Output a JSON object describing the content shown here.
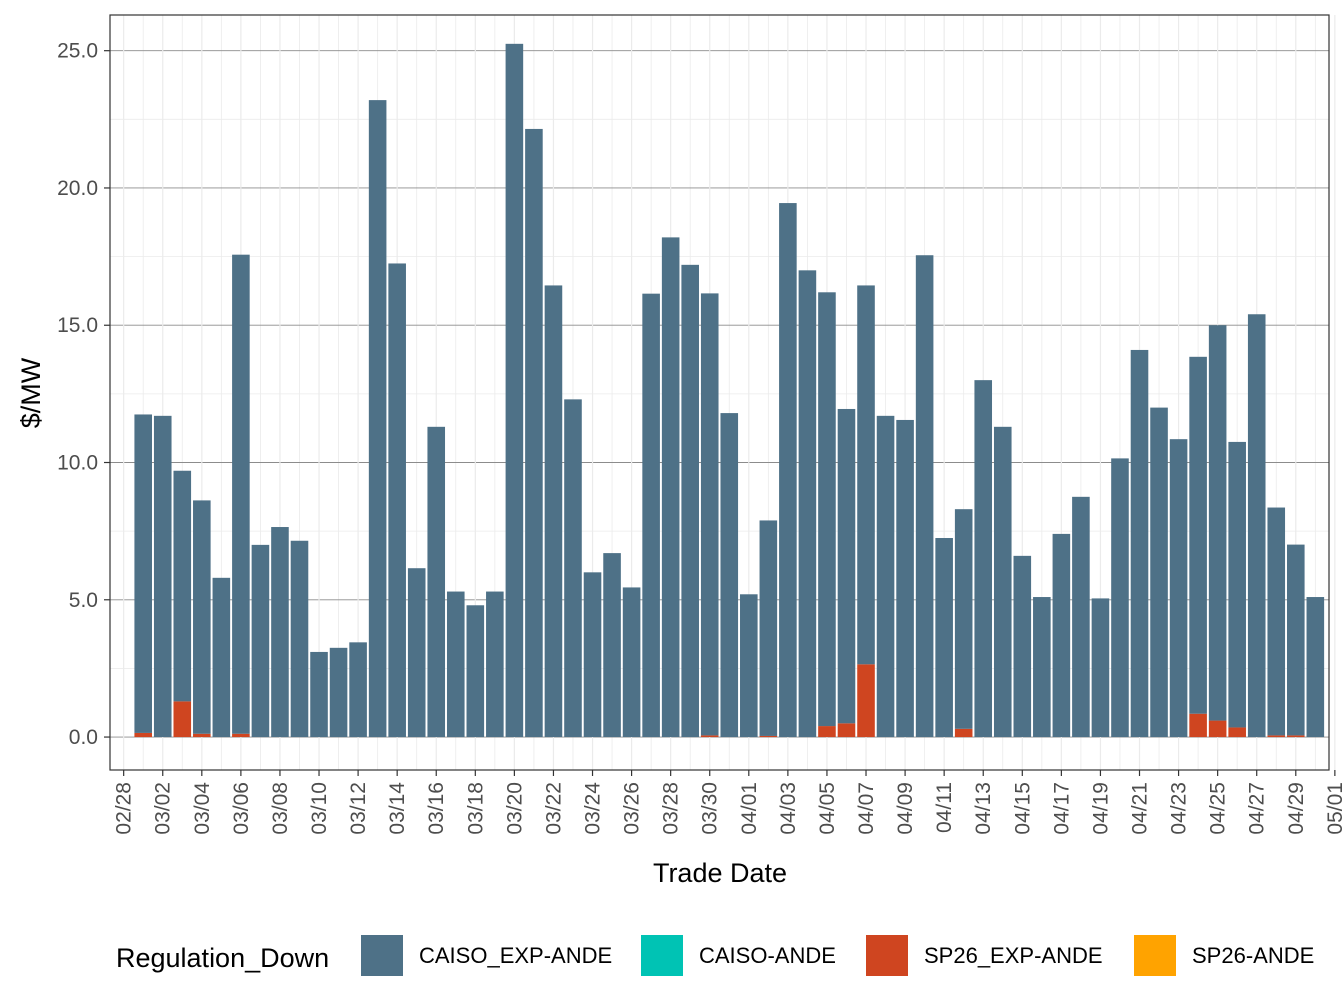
{
  "chart_data": {
    "type": "bar",
    "stacked": true,
    "xlabel": "Trade Date",
    "ylabel": "$/MW",
    "ylim": [
      -1.2,
      26.3
    ],
    "yticks": [
      0,
      5,
      10,
      15,
      20,
      25
    ],
    "ytick_labels": [
      "0.0",
      "5.0",
      "10.0",
      "15.0",
      "20.0",
      "25.0"
    ],
    "xlim": [
      -0.7,
      61.7
    ],
    "xticks": [
      0,
      2,
      4,
      6,
      8,
      10,
      12,
      14,
      16,
      18,
      20,
      22,
      24,
      26,
      28,
      30,
      32,
      34,
      36,
      38,
      40,
      42,
      44,
      46,
      48,
      50,
      52,
      54,
      56,
      58,
      60,
      62
    ],
    "xtick_labels": [
      "02/28",
      "03/02",
      "03/04",
      "03/06",
      "03/08",
      "03/10",
      "03/12",
      "03/14",
      "03/16",
      "03/18",
      "03/20",
      "03/22",
      "03/24",
      "03/26",
      "03/28",
      "03/30",
      "04/01",
      "04/03",
      "04/05",
      "04/07",
      "04/09",
      "04/11",
      "04/13",
      "04/15",
      "04/17",
      "04/19",
      "04/21",
      "04/23",
      "04/25",
      "04/27",
      "04/29",
      "05/01"
    ],
    "categories": [
      "03/01",
      "03/02",
      "03/03",
      "03/04",
      "03/05",
      "03/06",
      "03/07",
      "03/08",
      "03/09",
      "03/10",
      "03/11",
      "03/12",
      "03/13",
      "03/14",
      "03/15",
      "03/16",
      "03/17",
      "03/18",
      "03/19",
      "03/20",
      "03/21",
      "03/22",
      "03/23",
      "03/24",
      "03/25",
      "03/26",
      "03/27",
      "03/28",
      "03/29",
      "03/30",
      "03/31",
      "04/01",
      "04/02",
      "04/03",
      "04/04",
      "04/05",
      "04/06",
      "04/07",
      "04/08",
      "04/09",
      "04/10",
      "04/11",
      "04/12",
      "04/13",
      "04/14",
      "04/15",
      "04/16",
      "04/17",
      "04/18",
      "04/19",
      "04/20",
      "04/21",
      "04/22",
      "04/23",
      "04/24",
      "04/25",
      "04/26",
      "04/27",
      "04/28",
      "04/29",
      "04/30"
    ],
    "series": [
      {
        "name": "CAISO_EXP-ANDE",
        "color": "#4e7187",
        "values": [
          11.6,
          11.7,
          8.4,
          8.5,
          5.8,
          17.45,
          7.0,
          7.65,
          7.15,
          3.1,
          3.25,
          3.45,
          23.2,
          17.25,
          6.15,
          11.3,
          5.3,
          4.8,
          5.3,
          25.25,
          22.15,
          16.45,
          12.3,
          6.0,
          6.7,
          5.45,
          16.15,
          18.2,
          17.2,
          16.1,
          11.8,
          5.2,
          7.85,
          19.45,
          17.0,
          15.8,
          11.45,
          13.8,
          11.7,
          11.55,
          17.55,
          7.25,
          8.0,
          13.0,
          11.3,
          6.6,
          5.1,
          7.4,
          8.75,
          5.05,
          10.15,
          14.1,
          12.0,
          10.85,
          13.0,
          14.4,
          10.4,
          15.4,
          8.3,
          6.95,
          5.1
        ]
      },
      {
        "name": "CAISO-ANDE",
        "color": "#00c3b4",
        "values": [
          0,
          0,
          0,
          0,
          0,
          0,
          0,
          0,
          0,
          0,
          0,
          0,
          0,
          0,
          0,
          0,
          0,
          0,
          0,
          0,
          0,
          0,
          0,
          0,
          0,
          0,
          0,
          0,
          0,
          0,
          0,
          0,
          0,
          0,
          0,
          0,
          0,
          0,
          0,
          0,
          0,
          0,
          0,
          0,
          0,
          0,
          0,
          0,
          0,
          0,
          0,
          0,
          0,
          0,
          0,
          0,
          0,
          0,
          0,
          0,
          0
        ]
      },
      {
        "name": "SP26_EXP-ANDE",
        "color": "#cf4520",
        "values": [
          0.15,
          0.0,
          1.3,
          0.12,
          0.0,
          0.12,
          0.0,
          0.0,
          0.0,
          0.0,
          0.0,
          0.0,
          0.0,
          0.0,
          0.0,
          0.0,
          0.0,
          0.0,
          0.0,
          0.0,
          0.0,
          0.0,
          0.0,
          0.0,
          0.0,
          0.0,
          0.0,
          0.0,
          0.0,
          0.06,
          0.0,
          0.0,
          0.04,
          0.0,
          0.0,
          0.4,
          0.5,
          2.65,
          0.0,
          0.0,
          0.0,
          0.0,
          0.3,
          0.0,
          0.0,
          0.0,
          0.0,
          0.0,
          0.0,
          0.0,
          0.0,
          0.0,
          0.0,
          0.0,
          0.85,
          0.6,
          0.35,
          0.0,
          0.06,
          0.06,
          0.0
        ]
      },
      {
        "name": "SP26-ANDE",
        "color": "#ffa300",
        "values": [
          0,
          0,
          0,
          0,
          0,
          0,
          0,
          0,
          0,
          0,
          0,
          0,
          0,
          0,
          0,
          0,
          0,
          0,
          0,
          0,
          0,
          0,
          0,
          0,
          0,
          0,
          0,
          0,
          0,
          0,
          0,
          0,
          0,
          0,
          0,
          0,
          0,
          0,
          0,
          0,
          0,
          0,
          0,
          0,
          0,
          0,
          0,
          0,
          0,
          0,
          0,
          0,
          0,
          0,
          0,
          0,
          0,
          0,
          0,
          0,
          0
        ]
      }
    ],
    "legend": {
      "title": "Regulation_Down",
      "position": "bottom",
      "items": [
        "CAISO_EXP-ANDE",
        "CAISO-ANDE",
        "SP26_EXP-ANDE",
        "SP26-ANDE"
      ]
    },
    "grid": true
  }
}
